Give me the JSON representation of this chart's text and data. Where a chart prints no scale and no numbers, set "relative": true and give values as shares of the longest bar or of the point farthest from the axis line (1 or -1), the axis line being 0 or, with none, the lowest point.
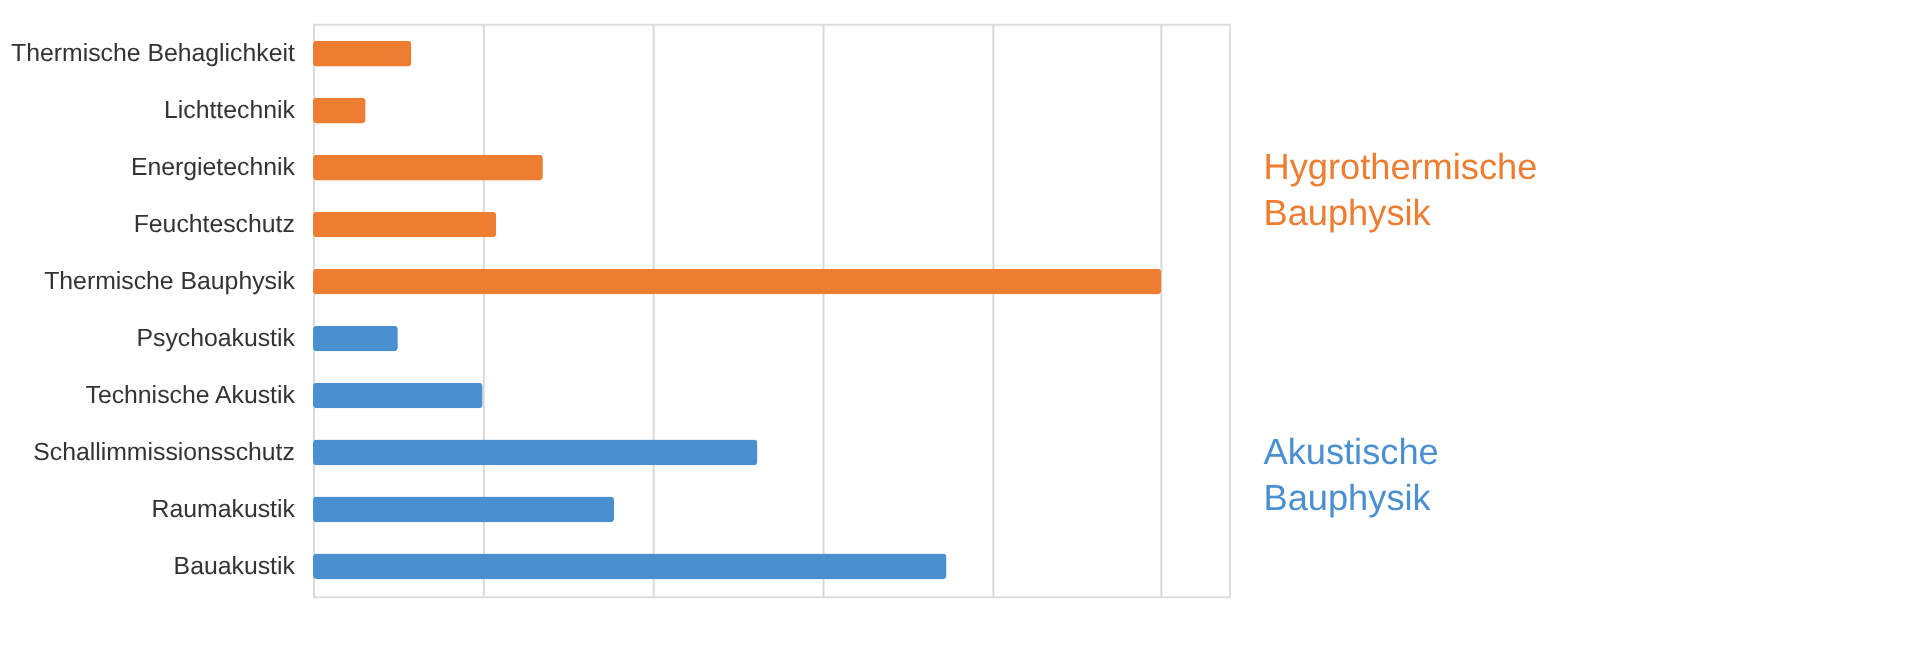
{
  "chart_data": {
    "type": "bar",
    "orientation": "horizontal",
    "relative": true,
    "grid": "x",
    "legend": "right",
    "categories": [
      "Thermische Behaglichkeit",
      "Lichttechnik",
      "Energietechnik",
      "Feuchteschutz",
      "Thermische Bauphysik",
      "Psychoakustik",
      "Technische Akustik",
      "Schallimmissionsschutz",
      "Raumakustik",
      "Bauakustik"
    ],
    "series": [
      {
        "name": "Hygrothermische Bauphysik",
        "color": "#ed7d31",
        "values": [
          0.116,
          0.062,
          0.271,
          0.216,
          1,
          null,
          null,
          null,
          null,
          null
        ]
      },
      {
        "name": "Akustische Bauphysik",
        "color": "#4a8fd0",
        "values": [
          null,
          null,
          null,
          null,
          null,
          0.1,
          0.2,
          0.524,
          0.355,
          0.747
        ]
      }
    ]
  }
}
